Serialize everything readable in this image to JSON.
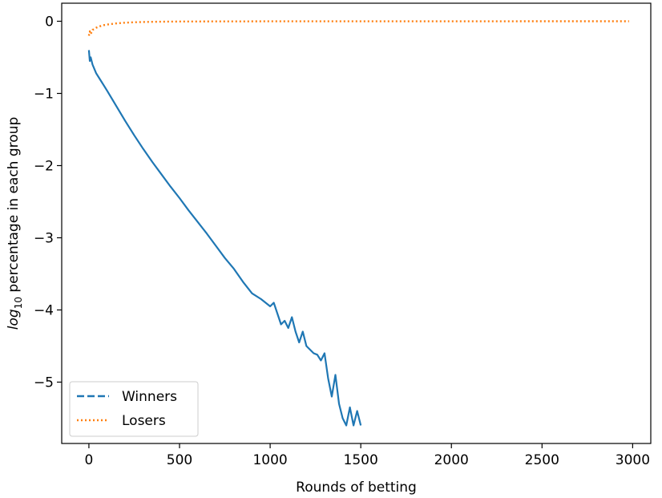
{
  "chart_data": {
    "type": "line",
    "title": "",
    "xlabel": "Rounds of betting",
    "ylabel": {
      "prefix": "log",
      "subscript": "10",
      "suffix": " percentage in each group"
    },
    "xlim": [
      -150,
      3100
    ],
    "ylim": [
      -5.85,
      0.25
    ],
    "xticks": [
      {
        "value": 0,
        "label": "0"
      },
      {
        "value": 500,
        "label": "500"
      },
      {
        "value": 1000,
        "label": "1000"
      },
      {
        "value": 1500,
        "label": "1500"
      },
      {
        "value": 2000,
        "label": "2000"
      },
      {
        "value": 2500,
        "label": "2500"
      },
      {
        "value": 3000,
        "label": "3000"
      }
    ],
    "yticks": [
      {
        "value": 0,
        "label": "0"
      },
      {
        "value": -1,
        "label": "−1"
      },
      {
        "value": -2,
        "label": "−2"
      },
      {
        "value": -3,
        "label": "−3"
      },
      {
        "value": -4,
        "label": "−4"
      },
      {
        "value": -5,
        "label": "−5"
      }
    ],
    "grid": false,
    "legend_position": "lower-left",
    "series": [
      {
        "name": "Winners",
        "color": "#1f77b4",
        "style": "dashed",
        "x": [
          0,
          5,
          10,
          20,
          40,
          60,
          80,
          100,
          150,
          200,
          250,
          300,
          350,
          400,
          450,
          500,
          550,
          600,
          650,
          700,
          750,
          800,
          850,
          900,
          950,
          1000,
          1020,
          1040,
          1060,
          1080,
          1100,
          1120,
          1140,
          1160,
          1180,
          1200,
          1220,
          1240,
          1260,
          1280,
          1300,
          1320,
          1340,
          1360,
          1380,
          1400,
          1420,
          1440,
          1460,
          1480,
          1500
        ],
        "y": [
          -0.4,
          -0.55,
          -0.5,
          -0.6,
          -0.72,
          -0.8,
          -0.88,
          -0.96,
          -1.17,
          -1.38,
          -1.58,
          -1.77,
          -1.95,
          -2.12,
          -2.29,
          -2.45,
          -2.62,
          -2.78,
          -2.94,
          -3.11,
          -3.28,
          -3.43,
          -3.61,
          -3.77,
          -3.85,
          -3.95,
          -3.9,
          -4.05,
          -4.2,
          -4.15,
          -4.25,
          -4.1,
          -4.3,
          -4.45,
          -4.3,
          -4.5,
          -4.55,
          -4.6,
          -4.62,
          -4.7,
          -4.6,
          -4.95,
          -5.2,
          -4.9,
          -5.3,
          -5.5,
          -5.6,
          -5.35,
          -5.6,
          -5.4,
          -5.6
        ]
      },
      {
        "name": "Losers",
        "color": "#ff7f0e",
        "style": "dotted",
        "x": [
          0,
          5,
          10,
          20,
          40,
          60,
          80,
          100,
          150,
          200,
          250,
          300,
          400,
          500,
          600,
          800,
          1000,
          1500,
          2000,
          2500,
          2980
        ],
        "y": [
          -0.2,
          -0.14,
          -0.18,
          -0.12,
          -0.09,
          -0.07,
          -0.055,
          -0.045,
          -0.03,
          -0.02,
          -0.014,
          -0.01,
          -0.006,
          -0.004,
          -0.003,
          -0.002,
          -0.001,
          -0.0005,
          -0.0002,
          -0.0001,
          0
        ]
      }
    ]
  }
}
